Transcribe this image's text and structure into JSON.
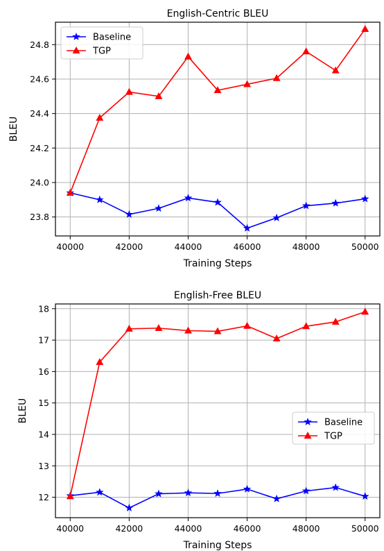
{
  "chart_data": [
    {
      "type": "line",
      "title": "English-Centric BLEU",
      "xlabel": "Training Steps",
      "ylabel": "BLEU",
      "x": [
        40000,
        41000,
        42000,
        43000,
        44000,
        45000,
        46000,
        47000,
        48000,
        49000,
        50000
      ],
      "xticks": [
        40000,
        42000,
        44000,
        46000,
        48000,
        50000
      ],
      "yticks": [
        23.8,
        24.0,
        24.2,
        24.4,
        24.6,
        24.8
      ],
      "xlim": [
        39500,
        50500
      ],
      "ylim": [
        23.69,
        24.93
      ],
      "grid": true,
      "legend_position": "top-left",
      "series": [
        {
          "name": "Baseline",
          "color": "#0000ff",
          "marker": "star",
          "values": [
            23.94,
            23.9,
            23.815,
            23.85,
            23.91,
            23.885,
            23.735,
            23.795,
            23.865,
            23.88,
            23.905
          ]
        },
        {
          "name": "TGP",
          "color": "#ff0000",
          "marker": "triangle",
          "values": [
            23.94,
            24.375,
            24.525,
            24.5,
            24.73,
            24.535,
            24.57,
            24.605,
            24.76,
            24.65,
            24.89
          ]
        }
      ]
    },
    {
      "type": "line",
      "title": "English-Free BLEU",
      "xlabel": "Training Steps",
      "ylabel": "BLEU",
      "x": [
        40000,
        41000,
        42000,
        43000,
        44000,
        45000,
        46000,
        47000,
        48000,
        49000,
        50000
      ],
      "xticks": [
        40000,
        42000,
        44000,
        46000,
        48000,
        50000
      ],
      "yticks": [
        12,
        13,
        14,
        15,
        16,
        17,
        18
      ],
      "xlim": [
        39500,
        50500
      ],
      "ylim": [
        11.35,
        18.15
      ],
      "grid": true,
      "legend_position": "center-right",
      "series": [
        {
          "name": "Baseline",
          "color": "#0000ff",
          "marker": "star",
          "values": [
            12.05,
            12.16,
            11.66,
            12.11,
            12.14,
            12.12,
            12.26,
            11.95,
            12.2,
            12.31,
            12.03
          ]
        },
        {
          "name": "TGP",
          "color": "#ff0000",
          "marker": "triangle",
          "values": [
            12.03,
            16.3,
            17.36,
            17.38,
            17.3,
            17.28,
            17.45,
            17.05,
            17.44,
            17.58,
            17.9
          ]
        }
      ]
    }
  ]
}
